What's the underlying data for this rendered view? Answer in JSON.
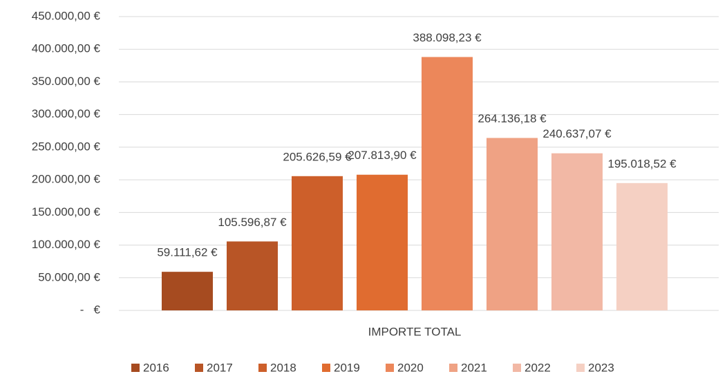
{
  "chart_data": {
    "type": "bar",
    "categories": [
      "IMPORTE TOTAL"
    ],
    "series": [
      {
        "name": "2016",
        "color": "#a64b20",
        "values": [
          59111.62
        ],
        "value_labels": [
          "59.111,62 €"
        ]
      },
      {
        "name": "2017",
        "color": "#b85526",
        "values": [
          105596.87
        ],
        "value_labels": [
          "105.596,87 €"
        ]
      },
      {
        "name": "2018",
        "color": "#cd5f2a",
        "values": [
          205626.59
        ],
        "value_labels": [
          "205.626,59 €"
        ]
      },
      {
        "name": "2019",
        "color": "#e06c30",
        "values": [
          207813.9
        ],
        "value_labels": [
          "207.813,90 €"
        ]
      },
      {
        "name": "2020",
        "color": "#ec875a",
        "values": [
          388098.23
        ],
        "value_labels": [
          "388.098,23 €"
        ]
      },
      {
        "name": "2021",
        "color": "#efa284",
        "values": [
          264136.18
        ],
        "value_labels": [
          "264.136,18 €"
        ]
      },
      {
        "name": "2022",
        "color": "#f2b8a5",
        "values": [
          240637.07
        ],
        "value_labels": [
          "240.637,07 €"
        ]
      },
      {
        "name": "2023",
        "color": "#f5d0c3",
        "values": [
          195018.52
        ],
        "value_labels": [
          "195.018,52 €"
        ]
      }
    ],
    "ylim": [
      0,
      450000
    ],
    "yticks": [
      {
        "value": 0,
        "label": "-   €"
      },
      {
        "value": 50000,
        "label": "50.000,00 €"
      },
      {
        "value": 100000,
        "label": "100.000,00 €"
      },
      {
        "value": 150000,
        "label": "150.000,00 €"
      },
      {
        "value": 200000,
        "label": "200.000,00 €"
      },
      {
        "value": 250000,
        "label": "250.000,00 €"
      },
      {
        "value": 300000,
        "label": "300.000,00 €"
      },
      {
        "value": 350000,
        "label": "350.000,00 €"
      },
      {
        "value": 400000,
        "label": "400.000,00 €"
      },
      {
        "value": 450000,
        "label": "450.000,00 €"
      }
    ],
    "grid": true,
    "legend": "bottom"
  }
}
